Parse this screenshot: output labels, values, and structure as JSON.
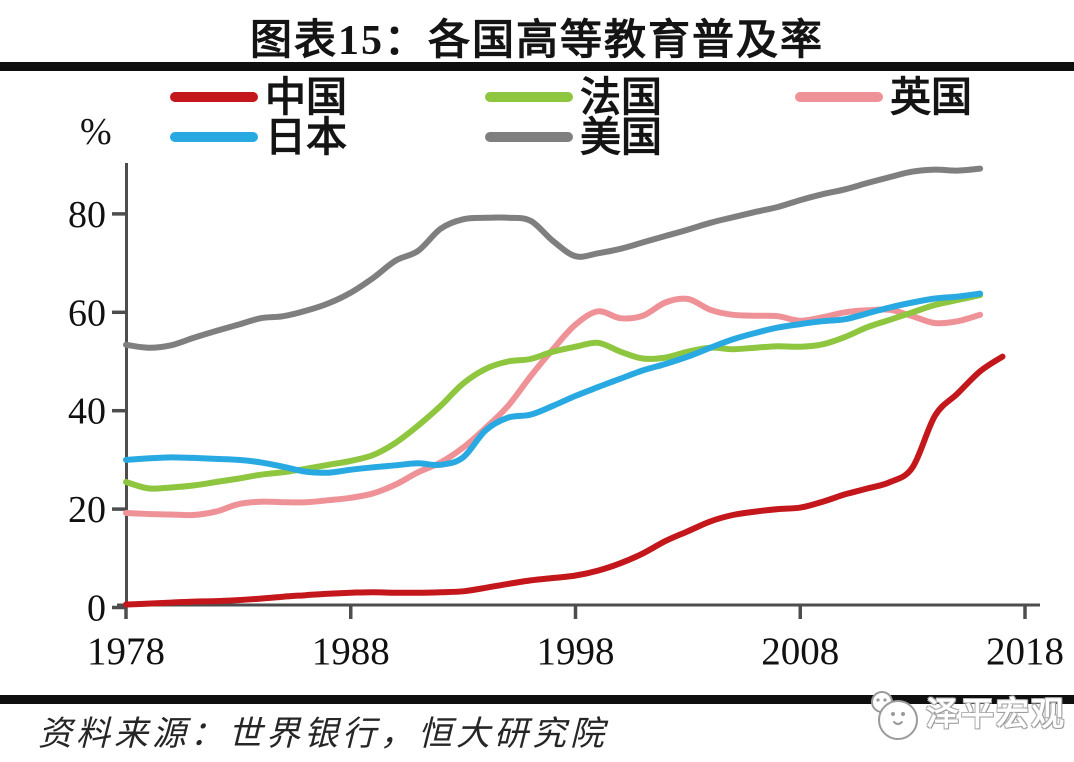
{
  "title": "图表15：各国高等教育普及率",
  "y_unit": "%",
  "source": "资料来源：世界银行，恒大研究院",
  "watermark": "泽平宏观",
  "chart_data": {
    "type": "line",
    "title": "图表15：各国高等教育普及率",
    "xlabel": "",
    "ylabel": "%",
    "x_start_year": 1978,
    "xticks": [
      1978,
      1988,
      1998,
      2008,
      2018
    ],
    "yticks": [
      0,
      20,
      40,
      60,
      80
    ],
    "xlim": [
      1977.6,
      2018.7
    ],
    "ylim": [
      0,
      90
    ],
    "grid": false,
    "legend_position": "top",
    "axis_color": "#4d4d4d",
    "draw_order": [
      4,
      2,
      1,
      3,
      0
    ],
    "series": [
      {
        "name": "中国",
        "color": "#c4171c",
        "start_year": 1978,
        "values": [
          0.6,
          0.8,
          1.0,
          1.2,
          1.3,
          1.5,
          1.8,
          2.2,
          2.5,
          2.8,
          3.0,
          3.1,
          3.0,
          3.0,
          3.1,
          3.3,
          4.0,
          4.8,
          5.5,
          6.0,
          6.5,
          7.5,
          9.0,
          11.0,
          13.5,
          15.5,
          17.5,
          18.8,
          19.5,
          20.0,
          20.3,
          21.5,
          23.0,
          24.2,
          25.5,
          28.5,
          39.0,
          43.5,
          48.0,
          51.0
        ]
      },
      {
        "name": "日本",
        "color": "#29a9e1",
        "start_year": 1978,
        "values": [
          30.0,
          30.3,
          30.5,
          30.4,
          30.2,
          30.0,
          29.5,
          28.6,
          27.6,
          27.4,
          28.0,
          28.5,
          28.9,
          29.3,
          29.0,
          30.5,
          36.0,
          38.6,
          39.2,
          41.0,
          43.0,
          44.8,
          46.5,
          48.2,
          49.5,
          51.0,
          52.8,
          54.5,
          55.8,
          56.9,
          57.6,
          58.2,
          58.6,
          59.8,
          61.0,
          62.0,
          62.8,
          63.2,
          63.8
        ]
      },
      {
        "name": "法国",
        "color": "#8ec63f",
        "start_year": 1978,
        "values": [
          25.5,
          24.2,
          24.4,
          24.8,
          25.5,
          26.2,
          27.0,
          27.5,
          28.2,
          29.0,
          29.8,
          31.0,
          33.5,
          37.0,
          41.0,
          45.5,
          48.5,
          50.0,
          50.5,
          52.0,
          53.0,
          53.8,
          52.0,
          50.6,
          50.8,
          52.0,
          52.8,
          52.5,
          52.8,
          53.1,
          53.0,
          53.5,
          55.0,
          57.0,
          58.5,
          60.0,
          61.5,
          62.5,
          63.5
        ]
      },
      {
        "name": "美国",
        "color": "#7f7f7f",
        "start_year": 1978,
        "values": [
          53.4,
          52.8,
          53.3,
          54.8,
          56.2,
          57.5,
          58.8,
          59.2,
          60.3,
          61.8,
          64.0,
          67.0,
          70.5,
          72.5,
          77.0,
          78.9,
          79.2,
          79.2,
          78.6,
          74.5,
          71.4,
          72.0,
          72.9,
          74.2,
          75.5,
          76.8,
          78.2,
          79.3,
          80.4,
          81.4,
          82.8,
          84.0,
          85.0,
          86.3,
          87.5,
          88.6,
          89.0,
          88.8,
          89.2
        ]
      },
      {
        "name": "英国",
        "color": "#ee9298",
        "start_year": 1978,
        "values": [
          19.2,
          19.0,
          18.9,
          18.8,
          19.5,
          21.0,
          21.5,
          21.4,
          21.4,
          21.8,
          22.3,
          23.2,
          25.0,
          27.5,
          29.5,
          32.5,
          36.5,
          41.0,
          47.0,
          52.5,
          57.5,
          60.2,
          58.8,
          59.3,
          62.0,
          62.7,
          60.5,
          59.5,
          59.3,
          59.2,
          58.3,
          59.0,
          60.0,
          60.4,
          60.5,
          59.2,
          57.8,
          58.2,
          59.5
        ]
      }
    ]
  }
}
